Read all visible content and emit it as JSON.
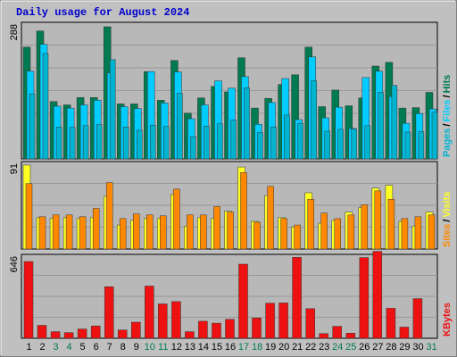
{
  "title": "Daily usage for August 2024",
  "colors": {
    "background": "#c0c0c0",
    "plot_bg": "#b8b8b8",
    "grid": "#999999",
    "title": "#0000cc",
    "hits": "#007a50",
    "files": "#00ccff",
    "pages": "#00b4d0",
    "visits": "#ffff22",
    "sites": "#ff8800",
    "kbytes": "#ee1111",
    "weekday_label": "#000000",
    "weekend_label": "#007a50"
  },
  "chart_data": [
    {
      "type": "bar",
      "panel": "hits-files-pages",
      "y_tick_label": "288",
      "ymax": 288,
      "side_labels": [
        "Pages",
        "/",
        "Files",
        "/",
        "Hits"
      ],
      "categories": [
        "1",
        "2",
        "3",
        "4",
        "5",
        "6",
        "7",
        "8",
        "9",
        "10",
        "11",
        "12",
        "13",
        "14",
        "15",
        "16",
        "17",
        "18",
        "19",
        "20",
        "21",
        "22",
        "23",
        "24",
        "25",
        "26",
        "27",
        "28",
        "29",
        "30",
        "31"
      ],
      "series": [
        {
          "name": "Hits",
          "values": [
            242,
            277,
            124,
            117,
            133,
            133,
            286,
            119,
            119,
            189,
            127,
            213,
            99,
            132,
            157,
            145,
            219,
            110,
            131,
            161,
            182,
            242,
            113,
            149,
            115,
            132,
            201,
            209,
            110,
            111,
            144
          ]
        },
        {
          "name": "Files",
          "values": [
            190,
            248,
            114,
            110,
            117,
            127,
            186,
            113,
            109,
            189,
            121,
            188,
            87,
            117,
            169,
            153,
            178,
            75,
            122,
            174,
            85,
            221,
            89,
            112,
            66,
            176,
            190,
            135,
            77,
            98,
            108
          ]
        },
        {
          "name": "Pages",
          "values": [
            141,
            228,
            69,
            68,
            72,
            74,
            215,
            69,
            62,
            73,
            70,
            142,
            48,
            71,
            76,
            84,
            154,
            57,
            69,
            95,
            77,
            169,
            60,
            64,
            65,
            72,
            144,
            159,
            58,
            59,
            101
          ]
        }
      ]
    },
    {
      "type": "bar",
      "panel": "visits-sites",
      "y_tick_label": "91",
      "ymax": 91,
      "side_labels": [
        "Sites",
        "/",
        "Visits"
      ],
      "categories": [
        "1",
        "2",
        "3",
        "4",
        "5",
        "6",
        "7",
        "8",
        "9",
        "10",
        "11",
        "12",
        "13",
        "14",
        "15",
        "16",
        "17",
        "18",
        "19",
        "20",
        "21",
        "22",
        "23",
        "24",
        "25",
        "26",
        "27",
        "28",
        "29",
        "30",
        "31"
      ],
      "series": [
        {
          "name": "Visits",
          "values": [
            91,
            34,
            33,
            34,
            33,
            34,
            57,
            26,
            31,
            33,
            33,
            59,
            25,
            34,
            33,
            41,
            89,
            30,
            58,
            34,
            24,
            61,
            28,
            31,
            40,
            45,
            66,
            69,
            30,
            25,
            40
          ]
        },
        {
          "name": "Sites",
          "values": [
            71,
            35,
            37,
            37,
            35,
            44,
            72,
            33,
            38,
            37,
            36,
            65,
            37,
            37,
            46,
            40,
            83,
            29,
            68,
            33,
            26,
            54,
            39,
            33,
            37,
            48,
            63,
            54,
            33,
            35,
            37
          ]
        }
      ]
    },
    {
      "type": "bar",
      "panel": "kbytes",
      "y_tick_label": "646",
      "ymax": 646,
      "side_labels": [
        "KBytes"
      ],
      "categories": [
        "1",
        "2",
        "3",
        "4",
        "5",
        "6",
        "7",
        "8",
        "9",
        "10",
        "11",
        "12",
        "13",
        "14",
        "15",
        "16",
        "17",
        "18",
        "19",
        "20",
        "21",
        "22",
        "23",
        "24",
        "25",
        "26",
        "27",
        "28",
        "29",
        "30",
        "31"
      ],
      "series": [
        {
          "name": "KBytes",
          "values": [
            617,
            104,
            53,
            45,
            75,
            99,
            414,
            67,
            129,
            420,
            276,
            295,
            53,
            137,
            121,
            152,
            596,
            163,
            282,
            284,
            651,
            238,
            37,
            96,
            41,
            649,
            699,
            241,
            90,
            319,
            0
          ]
        }
      ]
    }
  ],
  "x_labels": [
    "1",
    "2",
    "3",
    "4",
    "5",
    "6",
    "7",
    "8",
    "9",
    "10",
    "11",
    "12",
    "13",
    "14",
    "15",
    "16",
    "17",
    "18",
    "19",
    "20",
    "21",
    "22",
    "23",
    "24",
    "25",
    "26",
    "27",
    "28",
    "29",
    "30",
    "31"
  ],
  "weekend_days": [
    3,
    4,
    10,
    11,
    17,
    18,
    24,
    25,
    31
  ]
}
